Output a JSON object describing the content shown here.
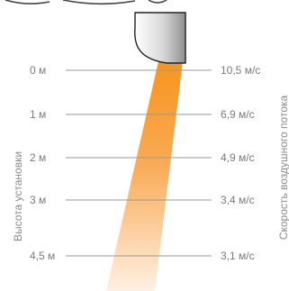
{
  "heights": [
    "0 м",
    "1 м",
    "2 м",
    "3 м",
    "4,5 м"
  ],
  "speeds": [
    "10,5 м/с",
    "6,9 м/с",
    "4,9 м/с",
    "3,4 м/с",
    "3,1 м/с"
  ],
  "axis_labels": {
    "left": "Высота установки",
    "right": "Скорость воздушного потока"
  },
  "colors": {
    "beam_top": "#f7941d",
    "beam_bottom": "#fde7cf",
    "line": "#9a9a9a",
    "text": "#7a7a7a"
  }
}
